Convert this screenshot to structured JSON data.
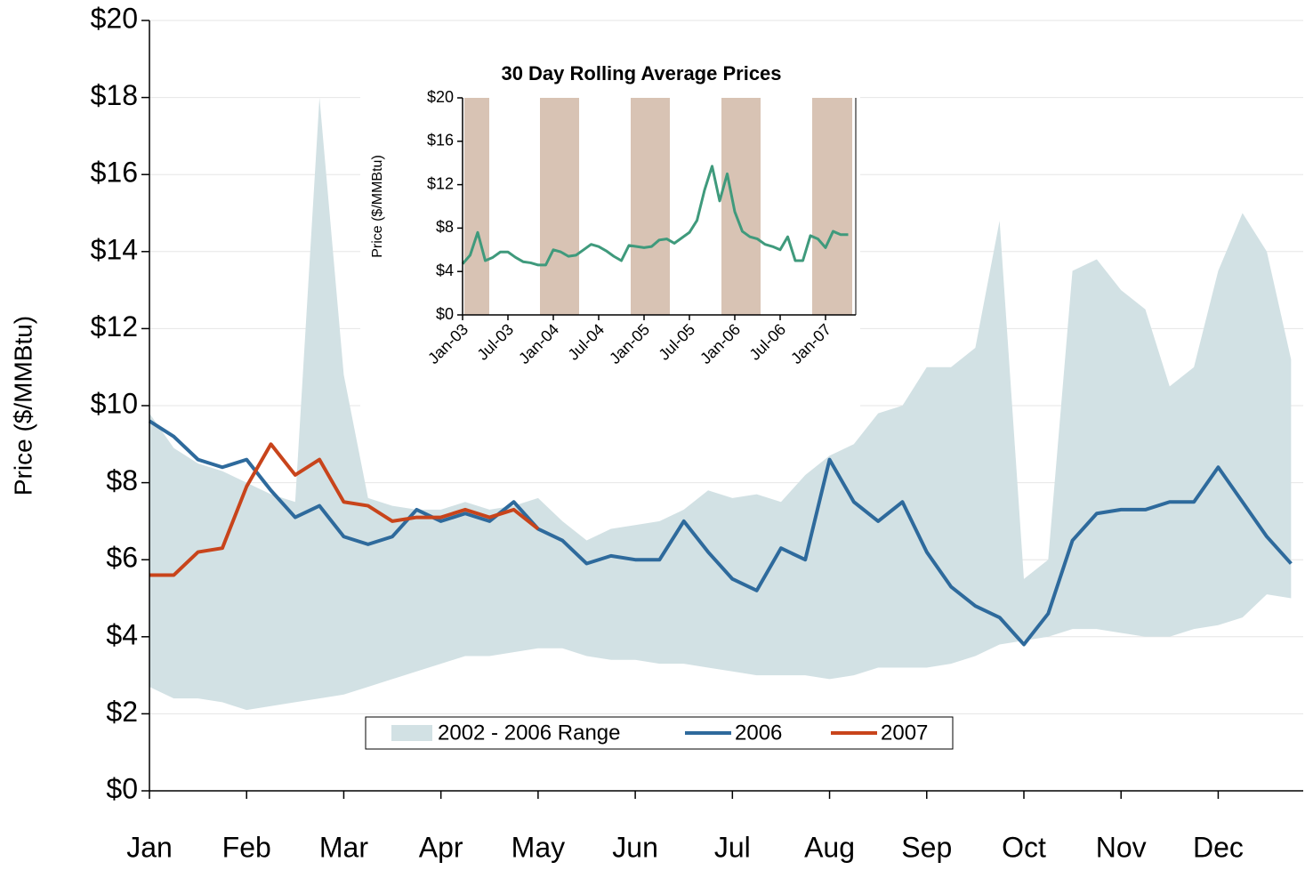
{
  "chart_data": [
    {
      "type": "line",
      "y_label": "Price ($/MMBtu)",
      "ylim": [
        0,
        20
      ],
      "yticks": [
        {
          "value": 0,
          "label": "$0"
        },
        {
          "value": 2,
          "label": "$2"
        },
        {
          "value": 4,
          "label": "$4"
        },
        {
          "value": 6,
          "label": "$6"
        },
        {
          "value": 8,
          "label": "$8"
        },
        {
          "value": 10,
          "label": "$10"
        },
        {
          "value": 12,
          "label": "$12"
        },
        {
          "value": 14,
          "label": "$14"
        },
        {
          "value": 16,
          "label": "$16"
        },
        {
          "value": 18,
          "label": "$18"
        },
        {
          "value": 20,
          "label": "$20"
        }
      ],
      "grid": true,
      "legend": "lower center",
      "categories": [
        "Jan",
        null,
        null,
        null,
        "Feb",
        null,
        null,
        null,
        "Mar",
        null,
        null,
        null,
        "Apr",
        null,
        null,
        null,
        "May",
        null,
        null,
        null,
        "Jun",
        null,
        null,
        null,
        "Jul",
        null,
        null,
        null,
        "Aug",
        null,
        null,
        null,
        "Sep",
        null,
        null,
        null,
        "Oct",
        null,
        null,
        null,
        "Nov",
        null,
        null,
        null,
        "Dec",
        null,
        null,
        null
      ],
      "series": [
        {
          "name": "2002 - 2006 Range",
          "kind": "range",
          "color": "#d2e1e4",
          "high": [
            9.8,
            8.9,
            8.5,
            8.3,
            8.0,
            7.7,
            7.5,
            18.0,
            10.8,
            7.6,
            7.4,
            7.3,
            7.3,
            7.5,
            7.3,
            7.4,
            7.6,
            7.0,
            6.5,
            6.8,
            6.9,
            7.0,
            7.3,
            7.8,
            7.6,
            7.7,
            7.5,
            8.2,
            8.7,
            9.0,
            9.8,
            10.0,
            11.0,
            11.0,
            11.5,
            14.8,
            5.5,
            6.0,
            13.5,
            13.8,
            13.0,
            12.5,
            10.5,
            11.0,
            13.5,
            15.0,
            14.0,
            11.2
          ],
          "low": [
            2.7,
            2.4,
            2.4,
            2.3,
            2.1,
            2.2,
            2.3,
            2.4,
            2.5,
            2.7,
            2.9,
            3.1,
            3.3,
            3.5,
            3.5,
            3.6,
            3.7,
            3.7,
            3.5,
            3.4,
            3.4,
            3.3,
            3.3,
            3.2,
            3.1,
            3.0,
            3.0,
            3.0,
            2.9,
            3.0,
            3.2,
            3.2,
            3.2,
            3.3,
            3.5,
            3.8,
            3.9,
            4.0,
            4.2,
            4.2,
            4.1,
            4.0,
            4.0,
            4.2,
            4.3,
            4.5,
            5.1,
            5.0
          ]
        },
        {
          "name": "2006",
          "color": "#2e6a9c",
          "values": [
            9.6,
            9.2,
            8.6,
            8.4,
            8.6,
            7.8,
            7.1,
            7.4,
            6.6,
            6.4,
            6.6,
            7.3,
            7.0,
            7.2,
            7.0,
            7.5,
            6.8,
            6.5,
            5.9,
            6.1,
            6.0,
            6.0,
            7.0,
            6.2,
            5.5,
            5.2,
            6.3,
            6.0,
            8.6,
            7.5,
            7.0,
            7.5,
            6.2,
            5.3,
            4.8,
            4.5,
            3.8,
            4.6,
            6.5,
            7.2,
            7.3,
            7.3,
            7.5,
            7.5,
            8.4,
            7.5,
            6.6,
            5.9
          ]
        },
        {
          "name": "2007",
          "color": "#c8441b",
          "values": [
            5.6,
            5.6,
            6.2,
            6.3,
            7.9,
            9.0,
            8.2,
            8.6,
            7.5,
            7.4,
            7.0,
            7.1,
            7.1,
            7.3,
            7.1,
            7.3,
            6.8,
            null,
            null,
            null,
            null,
            null,
            null,
            null,
            null,
            null,
            null,
            null,
            null,
            null,
            null,
            null,
            null,
            null,
            null,
            null,
            null,
            null,
            null,
            null,
            null,
            null,
            null,
            null,
            null,
            null,
            null,
            null
          ]
        }
      ]
    },
    {
      "type": "line",
      "title": "30 Day Rolling Average Prices",
      "y_label": "Price ($/MMBtu)",
      "ylim": [
        0,
        20
      ],
      "yticks": [
        {
          "value": 0,
          "label": "$0"
        },
        {
          "value": 4,
          "label": "$4"
        },
        {
          "value": 8,
          "label": "$8"
        },
        {
          "value": 12,
          "label": "$12"
        },
        {
          "value": 16,
          "label": "$16"
        },
        {
          "value": 20,
          "label": "$20"
        }
      ],
      "categories": [
        "Jan-03",
        null,
        null,
        null,
        null,
        null,
        "Jul-03",
        null,
        null,
        null,
        null,
        null,
        "Jan-04",
        null,
        null,
        null,
        null,
        null,
        "Jul-04",
        null,
        null,
        null,
        null,
        null,
        "Jan-05",
        null,
        null,
        null,
        null,
        null,
        "Jul-05",
        null,
        null,
        null,
        null,
        null,
        "Jan-06",
        null,
        null,
        null,
        null,
        null,
        "Jul-06",
        null,
        null,
        null,
        null,
        null,
        "Jan-07",
        null,
        null,
        null
      ],
      "series": [
        {
          "color": "#3f9a7c",
          "values": [
            4.7,
            5.5,
            7.6,
            5.0,
            5.3,
            5.8,
            5.8,
            5.3,
            4.9,
            4.8,
            4.6,
            4.6,
            6.0,
            5.8,
            5.4,
            5.5,
            6.0,
            6.5,
            6.3,
            5.9,
            5.4,
            5.0,
            6.4,
            6.3,
            6.2,
            6.3,
            6.9,
            7.0,
            6.6,
            7.1,
            7.6,
            8.7,
            11.5,
            13.7,
            10.5,
            13.0,
            9.5,
            7.7,
            7.2,
            7.0,
            6.5,
            6.3,
            6.0,
            7.2,
            5.0,
            5.0,
            7.3,
            7.0,
            6.2,
            7.7,
            7.4,
            7.4
          ]
        }
      ]
    }
  ]
}
